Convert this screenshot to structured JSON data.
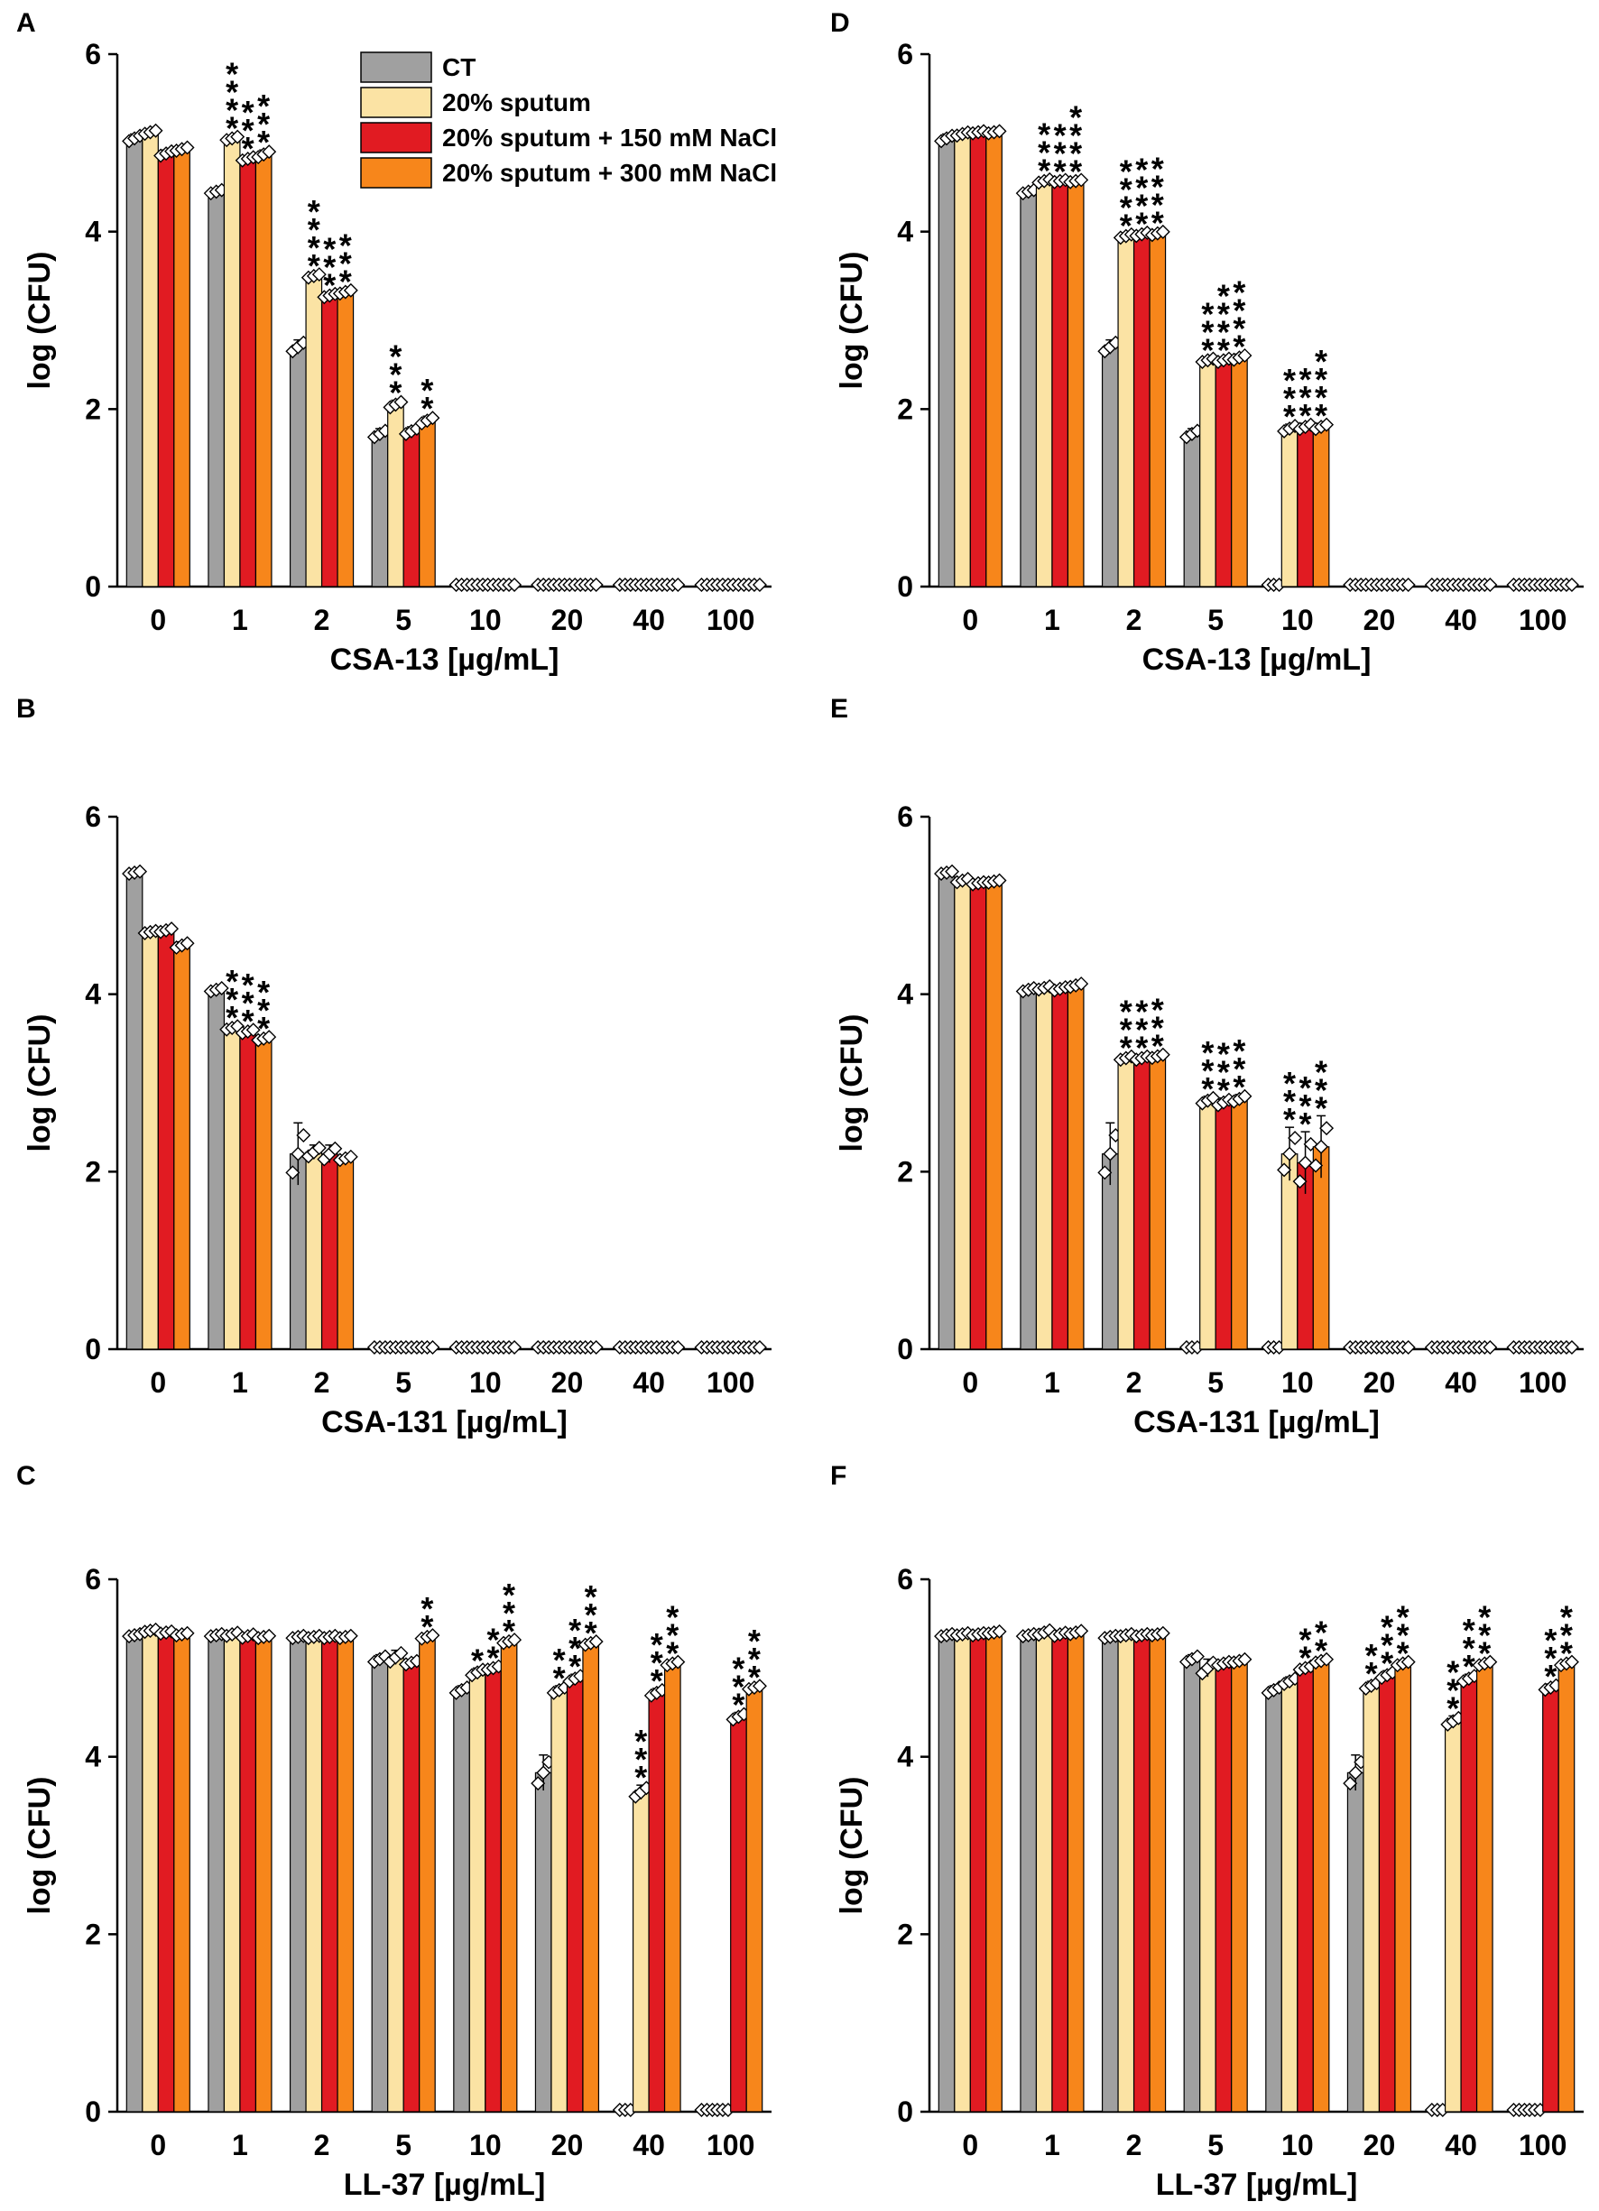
{
  "legend": {
    "entries": [
      {
        "label": "CT",
        "color": "#a0a0a0"
      },
      {
        "label": "20% sputum",
        "color": "#fbe3a4"
      },
      {
        "label": "20% sputum + 150 mM NaCl",
        "color": "#e11b22"
      },
      {
        "label": "20% sputum + 300 mM NaCl",
        "color": "#f7861b"
      }
    ]
  },
  "chart_data": [
    {
      "panel": "A",
      "type": "bar",
      "xlabel": "CSA-13 [µg/mL]",
      "ylabel": "log (CFU)",
      "ylim": [
        0,
        6
      ],
      "yticks": [
        "0",
        "2",
        "4",
        "6"
      ],
      "categories": [
        "0",
        "1",
        "2",
        "5",
        "10",
        "20",
        "40",
        "100"
      ],
      "series": [
        {
          "name": "CT",
          "values": [
            5.05,
            4.45,
            2.7,
            1.72,
            0.02,
            0.02,
            0.02,
            0.02
          ],
          "err": [
            0.05,
            0.03,
            0.08,
            0.06,
            0,
            0,
            0,
            0
          ]
        },
        {
          "name": "20% sputum",
          "values": [
            5.12,
            5.05,
            3.5,
            2.05,
            0.02,
            0.02,
            0.02,
            0.02
          ],
          "err": [
            0.03,
            0.03,
            0.03,
            0.05,
            0,
            0,
            0,
            0
          ]
        },
        {
          "name": "20% sputum + 150 mM NaCl",
          "values": [
            4.88,
            4.82,
            3.28,
            1.75,
            0.02,
            0.02,
            0.02,
            0.02
          ],
          "err": [
            0.04,
            0.03,
            0.03,
            0.05,
            0,
            0,
            0,
            0
          ]
        },
        {
          "name": "20% sputum + 300 mM NaCl",
          "values": [
            4.93,
            4.87,
            3.32,
            1.87,
            0.02,
            0.02,
            0.02,
            0.02
          ],
          "err": [
            0.03,
            0.05,
            0.03,
            0.05,
            0,
            0,
            0,
            0
          ]
        }
      ],
      "significance": [
        [
          "",
          "",
          "",
          "",
          "",
          "",
          "",
          ""
        ],
        [
          "",
          "****",
          "***",
          "***"
        ],
        [
          "",
          "****",
          "***",
          "***"
        ],
        [
          "",
          "***",
          "",
          "**"
        ],
        [
          "",
          "",
          "",
          ""
        ],
        [
          "",
          "",
          "",
          ""
        ],
        [
          "",
          "",
          "",
          ""
        ],
        [
          "",
          "",
          "",
          ""
        ]
      ]
    },
    {
      "panel": "B",
      "type": "bar",
      "xlabel": "CSA-131 [µg/mL]",
      "ylabel": "log (CFU)",
      "ylim": [
        0,
        6
      ],
      "yticks": [
        "0",
        "2",
        "4",
        "6"
      ],
      "categories": [
        "0",
        "1",
        "2",
        "5",
        "10",
        "20",
        "40",
        "100"
      ],
      "series": [
        {
          "name": "CT",
          "values": [
            5.37,
            4.05,
            2.2,
            0.02,
            0.02,
            0.02,
            0.02,
            0.02
          ],
          "err": [
            0.02,
            0.03,
            0.35,
            0,
            0,
            0,
            0,
            0
          ]
        },
        {
          "name": "20% sputum",
          "values": [
            4.7,
            3.62,
            2.22,
            0.02,
            0.02,
            0.02,
            0.02,
            0.02
          ],
          "err": [
            0.02,
            0.03,
            0.08,
            0,
            0,
            0,
            0,
            0
          ]
        },
        {
          "name": "20% sputum + 150 mM NaCl",
          "values": [
            4.72,
            3.58,
            2.2,
            0.02,
            0.02,
            0.02,
            0.02,
            0.02
          ],
          "err": [
            0.03,
            0.03,
            0.1,
            0,
            0,
            0,
            0,
            0
          ]
        },
        {
          "name": "20% sputum + 300 mM NaCl",
          "values": [
            4.55,
            3.5,
            2.15,
            0.02,
            0.02,
            0.02,
            0.02,
            0.02
          ],
          "err": [
            0.04,
            0.03,
            0.03,
            0,
            0,
            0,
            0,
            0
          ]
        }
      ],
      "significance": [
        [
          "",
          "",
          "",
          ""
        ],
        [
          "",
          "***",
          "***",
          "***"
        ],
        [
          "",
          "",
          "",
          ""
        ],
        [
          "",
          "",
          "",
          ""
        ],
        [
          "",
          "",
          "",
          ""
        ],
        [
          "",
          "",
          "",
          ""
        ],
        [
          "",
          "",
          "",
          ""
        ],
        [
          "",
          "",
          "",
          ""
        ]
      ]
    },
    {
      "panel": "C",
      "type": "bar",
      "xlabel": "LL-37 [µg/mL]",
      "ylabel": "log (CFU)",
      "ylim": [
        0,
        6
      ],
      "yticks": [
        "0",
        "2",
        "4",
        "6"
      ],
      "categories": [
        "0",
        "1",
        "2",
        "5",
        "10",
        "20",
        "40",
        "100"
      ],
      "series": [
        {
          "name": "CT",
          "values": [
            5.37,
            5.37,
            5.35,
            5.1,
            4.75,
            3.82,
            0.02,
            0.02
          ],
          "err": [
            0.02,
            0.02,
            0.02,
            0.05,
            0.05,
            0.2,
            0,
            0
          ]
        },
        {
          "name": "20% sputum",
          "values": [
            5.42,
            5.38,
            5.35,
            5.12,
            4.95,
            4.75,
            3.6,
            0.02
          ],
          "err": [
            0.02,
            0.03,
            0.02,
            0.08,
            0.05,
            0.05,
            0.08,
            0
          ]
        },
        {
          "name": "20% sputum + 150 mM NaCl",
          "values": [
            5.4,
            5.36,
            5.35,
            5.06,
            5.0,
            4.88,
            4.72,
            4.45
          ],
          "err": [
            0.02,
            0.03,
            0.02,
            0.03,
            0.03,
            0.05,
            0.05,
            0.05
          ]
        },
        {
          "name": "20% sputum + 300 mM NaCl",
          "values": [
            5.38,
            5.35,
            5.35,
            5.35,
            5.3,
            5.28,
            5.05,
            4.78
          ],
          "err": [
            0.02,
            0.02,
            0.02,
            0.03,
            0.03,
            0.03,
            0.03,
            0.03
          ]
        }
      ],
      "significance": [
        [
          "",
          "",
          "",
          ""
        ],
        [
          "",
          "",
          "",
          ""
        ],
        [
          "",
          "",
          "",
          ""
        ],
        [
          "",
          "",
          "",
          "**"
        ],
        [
          "",
          "*",
          "**",
          "***"
        ],
        [
          "",
          "**",
          "***",
          "***"
        ],
        [
          "",
          "***",
          "***",
          "***"
        ],
        [
          "",
          "",
          "***",
          "***"
        ]
      ]
    },
    {
      "panel": "D",
      "type": "bar",
      "xlabel": "CSA-13 [µg/mL]",
      "ylabel": "log (CFU)",
      "ylim": [
        0,
        6
      ],
      "yticks": [
        "0",
        "2",
        "4",
        "6"
      ],
      "categories": [
        "0",
        "1",
        "2",
        "5",
        "10",
        "20",
        "40",
        "100"
      ],
      "series": [
        {
          "name": "CT",
          "values": [
            5.05,
            4.45,
            2.7,
            1.72,
            0.02,
            0.02,
            0.02,
            0.02
          ],
          "err": [
            0.05,
            0.03,
            0.08,
            0.06,
            0,
            0,
            0,
            0
          ]
        },
        {
          "name": "20% sputum",
          "values": [
            5.1,
            4.57,
            3.95,
            2.55,
            1.78,
            0.02,
            0.02,
            0.02
          ],
          "err": [
            0.03,
            0.03,
            0.03,
            0.03,
            0.05,
            0,
            0,
            0
          ]
        },
        {
          "name": "20% sputum + 150 mM NaCl",
          "values": [
            5.12,
            4.57,
            3.97,
            2.55,
            1.8,
            0.02,
            0.02,
            0.02
          ],
          "err": [
            0.02,
            0.02,
            0.03,
            0.03,
            0.04,
            0,
            0,
            0
          ]
        },
        {
          "name": "20% sputum + 300 mM NaCl",
          "values": [
            5.12,
            4.57,
            3.98,
            2.58,
            1.8,
            0.02,
            0.02,
            0.02
          ],
          "err": [
            0.02,
            0.02,
            0.03,
            0.04,
            0.04,
            0,
            0,
            0
          ]
        }
      ],
      "significance": [
        [
          "",
          "",
          "",
          ""
        ],
        [
          "",
          "***",
          "***",
          "****"
        ],
        [
          "",
          "****",
          "****",
          "****"
        ],
        [
          "",
          "***",
          "****",
          "****"
        ],
        [
          "",
          "***",
          "***",
          "****"
        ],
        [
          "",
          "",
          "",
          ""
        ],
        [
          "",
          "",
          "",
          ""
        ],
        [
          "",
          "",
          "",
          ""
        ]
      ]
    },
    {
      "panel": "E",
      "type": "bar",
      "xlabel": "CSA-131 [µg/mL]",
      "ylabel": "log (CFU)",
      "ylim": [
        0,
        6
      ],
      "yticks": [
        "0",
        "2",
        "4",
        "6"
      ],
      "categories": [
        "0",
        "1",
        "2",
        "5",
        "10",
        "20",
        "40",
        "100"
      ],
      "series": [
        {
          "name": "CT",
          "values": [
            5.37,
            4.05,
            2.2,
            0.02,
            0.02,
            0.02,
            0.02,
            0.02
          ],
          "err": [
            0.02,
            0.03,
            0.35,
            0,
            0,
            0,
            0,
            0
          ]
        },
        {
          "name": "20% sputum",
          "values": [
            5.28,
            4.07,
            3.28,
            2.8,
            2.2,
            0.02,
            0.02,
            0.02
          ],
          "err": [
            0.03,
            0.03,
            0.03,
            0.05,
            0.3,
            0,
            0,
            0
          ]
        },
        {
          "name": "20% sputum + 150 mM NaCl",
          "values": [
            5.25,
            4.06,
            3.28,
            2.78,
            2.1,
            0.02,
            0.02,
            0.02
          ],
          "err": [
            0.02,
            0.03,
            0.03,
            0.05,
            0.35,
            0,
            0,
            0
          ]
        },
        {
          "name": "20% sputum + 300 mM NaCl",
          "values": [
            5.27,
            4.1,
            3.3,
            2.82,
            2.28,
            0.02,
            0.02,
            0.02
          ],
          "err": [
            0.02,
            0.03,
            0.03,
            0.05,
            0.35,
            0,
            0,
            0
          ]
        }
      ],
      "significance": [
        [
          "",
          "",
          "",
          ""
        ],
        [
          "",
          "",
          "",
          ""
        ],
        [
          "",
          "***",
          "***",
          "***"
        ],
        [
          "",
          "***",
          "***",
          "***"
        ],
        [
          "",
          "***",
          "***",
          "***"
        ],
        [
          "",
          "",
          "",
          ""
        ],
        [
          "",
          "",
          "",
          ""
        ],
        [
          "",
          "",
          "",
          ""
        ]
      ]
    },
    {
      "panel": "F",
      "type": "bar",
      "xlabel": "LL-37 [µg/mL]",
      "ylabel": "log (CFU)",
      "ylim": [
        0,
        6
      ],
      "yticks": [
        "0",
        "2",
        "4",
        "6"
      ],
      "categories": [
        "0",
        "1",
        "2",
        "5",
        "10",
        "20",
        "40",
        "100"
      ],
      "series": [
        {
          "name": "CT",
          "values": [
            5.37,
            5.37,
            5.35,
            5.1,
            4.75,
            3.82,
            0.02,
            0.02
          ],
          "err": [
            0.02,
            0.02,
            0.02,
            0.05,
            0.05,
            0.2,
            0,
            0
          ]
        },
        {
          "name": "20% sputum",
          "values": [
            5.38,
            5.4,
            5.37,
            5.0,
            4.85,
            4.8,
            4.4,
            0.02
          ],
          "err": [
            0.02,
            0.04,
            0.02,
            0.1,
            0.05,
            0.05,
            0.06,
            0
          ]
        },
        {
          "name": "20% sputum + 150 mM NaCl",
          "values": [
            5.38,
            5.38,
            5.37,
            5.05,
            5.0,
            4.92,
            4.88,
            4.78
          ],
          "err": [
            0.02,
            0.03,
            0.02,
            0.03,
            0.03,
            0.05,
            0.05,
            0.04
          ]
        },
        {
          "name": "20% sputum + 300 mM NaCl",
          "values": [
            5.4,
            5.4,
            5.38,
            5.08,
            5.08,
            5.05,
            5.05,
            5.05
          ],
          "err": [
            0.02,
            0.03,
            0.02,
            0.03,
            0.03,
            0.03,
            0.03,
            0.03
          ]
        }
      ],
      "significance": [
        [
          "",
          "",
          "",
          ""
        ],
        [
          "",
          "",
          "",
          ""
        ],
        [
          "",
          "",
          "",
          ""
        ],
        [
          "",
          "",
          "",
          ""
        ],
        [
          "",
          "",
          "**",
          "**"
        ],
        [
          "",
          "**",
          "***",
          "***"
        ],
        [
          "",
          "***",
          "***",
          "***"
        ],
        [
          "",
          "",
          "***",
          "***"
        ]
      ]
    }
  ]
}
